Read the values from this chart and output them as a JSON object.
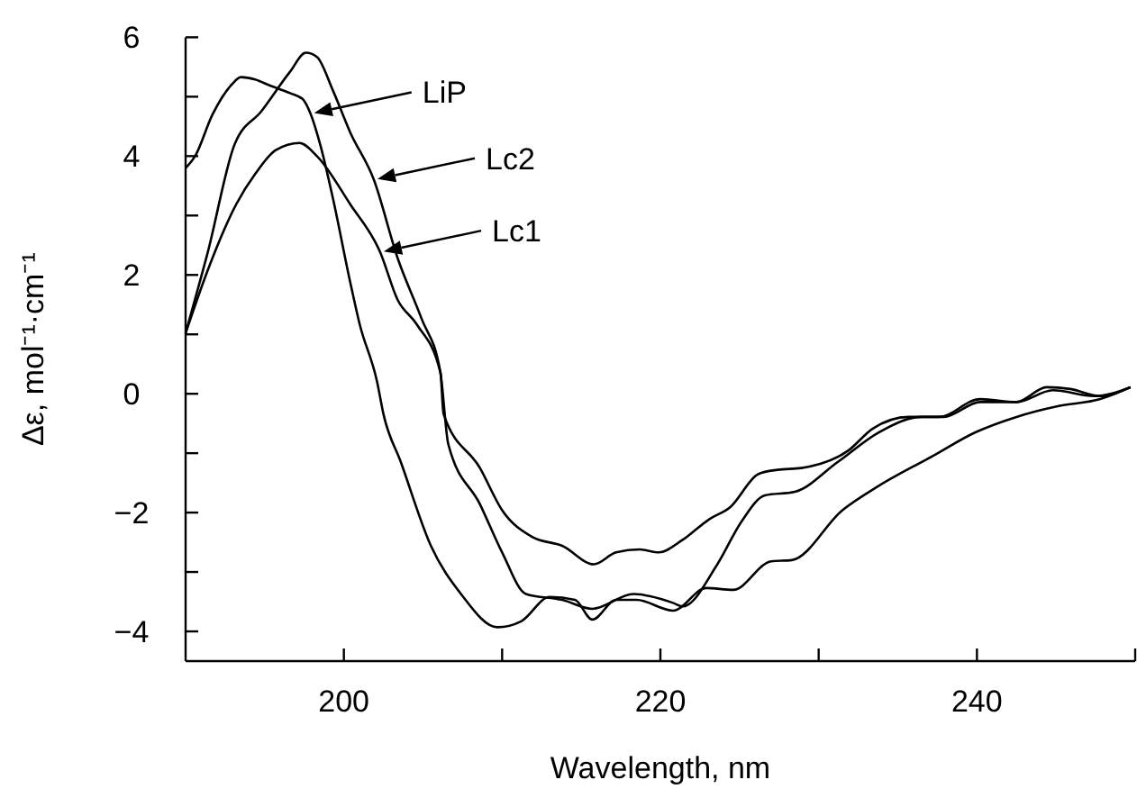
{
  "chart_data": {
    "type": "line",
    "xlabel": "Wavelength, nm",
    "ylabel": "Δε, mol⁻¹·cm⁻¹",
    "xlim": [
      190,
      250
    ],
    "ylim": [
      -4.5,
      6
    ],
    "xticks": [
      200,
      {
        "value": 210,
        "label": null
      },
      220,
      {
        "value": 230,
        "label": null
      },
      240,
      {
        "value": 250,
        "label": null
      }
    ],
    "yticks": [
      {
        "value": -4,
        "label": "−4"
      },
      {
        "value": -3,
        "label": null
      },
      {
        "value": -2,
        "label": "−2"
      },
      {
        "value": -1,
        "label": null
      },
      0,
      {
        "value": 1,
        "label": null
      },
      2,
      {
        "value": 3,
        "label": null
      },
      4,
      {
        "value": 5,
        "label": null
      },
      6
    ],
    "grid": false,
    "legend": "top",
    "marker": "none",
    "line_style": "solid",
    "series": [
      {
        "name": "LiP",
        "color": "#000000",
        "x": [
          190,
          190.6,
          191.7,
          192.9,
          193.5,
          194.4,
          195.3,
          196.6,
          197.4,
          197.9,
          198.5,
          199.3,
          200.4,
          201.0,
          202.1,
          202.5,
          203.6,
          205.5,
          207.4,
          209.7,
          211.2,
          213.0,
          214.6,
          215.7,
          217.2,
          218.5,
          220.8,
          222.9,
          224.6,
          227,
          228.3,
          231.5,
          233.8,
          237.2,
          239.9,
          242.5,
          245.1,
          247.8,
          249.7
        ],
        "values": [
          3.8,
          4.0,
          4.7,
          5.2,
          5.33,
          5.29,
          5.19,
          5.06,
          4.96,
          4.71,
          4.2,
          3.3,
          1.88,
          1.17,
          0.2,
          -0.34,
          -1.15,
          -2.56,
          -3.37,
          -3.93,
          -3.83,
          -3.42,
          -3.47,
          -3.8,
          -3.47,
          -3.47,
          -3.65,
          -3.27,
          -3.3,
          -2.82,
          -2.8,
          -1.96,
          -1.55,
          -1.05,
          -0.65,
          -0.39,
          -0.21,
          -0.09,
          0.11
        ]
      },
      {
        "name": "Lc2",
        "color": "#000000",
        "x": [
          190,
          191.4,
          193.1,
          194.8,
          196.6,
          197.6,
          198.3,
          199.3,
          200.4,
          201.9,
          203.4,
          204.9,
          206.1,
          206.6,
          208.6,
          210,
          211.5,
          213.8,
          215.7,
          218.3,
          220.8,
          221.4,
          223.6,
          225.1,
          226.6,
          228.5,
          231.2,
          233.8,
          236.5,
          237.9,
          240.2,
          242.5,
          244.8,
          247.4,
          249.7
        ],
        "values": [
          1.02,
          2.38,
          4.2,
          4.76,
          5.42,
          5.74,
          5.67,
          5.11,
          4.4,
          3.6,
          2.28,
          1.27,
          0.36,
          -0.85,
          -1.86,
          -2.67,
          -3.37,
          -3.47,
          -3.62,
          -3.37,
          -3.52,
          -3.58,
          -2.87,
          -2.16,
          -1.71,
          -1.65,
          -1.15,
          -0.65,
          -0.39,
          -0.39,
          -0.14,
          -0.14,
          0.06,
          -0.04,
          0.11
        ]
      },
      {
        "name": "Lc1",
        "color": "#000000",
        "x": [
          190,
          191.4,
          193.2,
          194.4,
          195.7,
          197.2,
          198.3,
          200.4,
          202.3,
          203.4,
          204.6,
          206.1,
          206.3,
          208.6,
          210,
          211.9,
          213.8,
          215.8,
          217.2,
          218.7,
          219.9,
          221.4,
          223.1,
          224.4,
          226.2,
          227.4,
          228.9,
          231.9,
          233.4,
          235.7,
          237.6,
          240.2,
          242.5,
          244.4,
          245.9,
          247.8,
          249.7
        ],
        "values": [
          1.02,
          2.08,
          3.19,
          3.7,
          4.1,
          4.22,
          4.0,
          3.19,
          2.38,
          1.58,
          1.17,
          0.36,
          -0.34,
          -1.25,
          -1.96,
          -2.41,
          -2.56,
          -2.87,
          -2.67,
          -2.62,
          -2.67,
          -2.46,
          -2.11,
          -1.91,
          -1.35,
          -1.28,
          -1.25,
          -0.95,
          -0.59,
          -0.39,
          -0.39,
          -0.09,
          -0.14,
          0.11,
          0.08,
          -0.04,
          0.11
        ]
      }
    ]
  }
}
